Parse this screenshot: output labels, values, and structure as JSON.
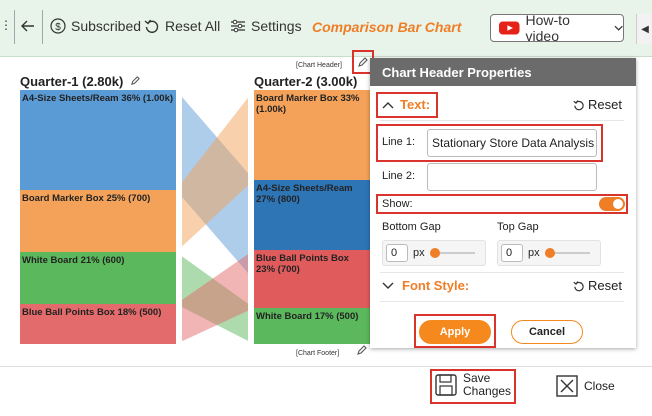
{
  "toolbar": {
    "back_icon": "back-arrow-icon",
    "subscribed_label": "Subscribed",
    "reset_all_label": "Reset All",
    "settings_label": "Settings",
    "chart_title": "Comparison Bar Chart",
    "howto_label": "How-to video",
    "accent_color": "#f07e26"
  },
  "chart": {
    "header_label": "[Chart Header]",
    "footer_label": "[Chart Footer]",
    "quarters": [
      {
        "title": "Quarter-1 (2.80k)",
        "segments": [
          {
            "label": "A4-Size Sheets/Ream 36% (1.00k)",
            "color": "#5b9bd5"
          },
          {
            "label": "Board Marker Box 25% (700)",
            "color": "#f4a25a"
          },
          {
            "label": "White Board 21% (600)",
            "color": "#5cb85c"
          },
          {
            "label": "Blue Ball Points Box 18% (500)",
            "color": "#e36b6b"
          }
        ]
      },
      {
        "title": "Quarter-2 (3.00k)",
        "segments": [
          {
            "label": "Board Marker Box 33% (1.00k)",
            "color": "#f4a25a"
          },
          {
            "label": "A4-Size Sheets/Ream 27% (800)",
            "color": "#2e75b6"
          },
          {
            "label": "Blue Ball Points Box 23% (700)",
            "color": "#e05c5c"
          },
          {
            "label": "White Board 17% (500)",
            "color": "#5cb85c"
          }
        ]
      }
    ]
  },
  "panel": {
    "title": "Chart Header Properties",
    "text_section": "Text:",
    "reset_label": "Reset",
    "line1_label": "Line 1:",
    "line1_value": "Stationary Store Data Analysis",
    "line2_label": "Line 2:",
    "line2_value": "",
    "show_label": "Show:",
    "show_on": true,
    "bottom_gap_label": "Bottom Gap",
    "bottom_gap_value": "0",
    "top_gap_label": "Top Gap",
    "top_gap_value": "0",
    "unit_label": "px",
    "font_style_section": "Font Style:",
    "font_reset_label": "Reset",
    "apply_label": "Apply",
    "cancel_label": "Cancel"
  },
  "bottom": {
    "save_line1": "Save",
    "save_line2": "Changes",
    "close_label": "Close"
  }
}
